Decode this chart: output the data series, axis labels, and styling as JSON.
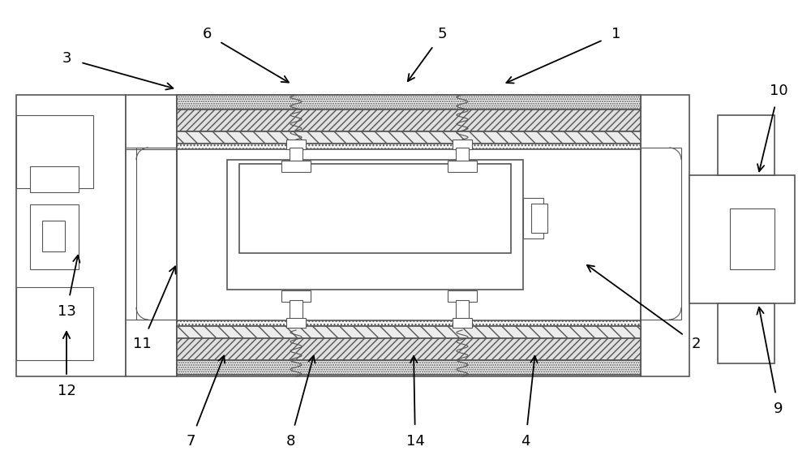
{
  "figsize": [
    10.0,
    5.72
  ],
  "dpi": 100,
  "bg_color": "#ffffff",
  "lc": "#555555",
  "lw_main": 1.2,
  "lw_thin": 0.8,
  "labels_data": [
    [
      "1",
      760,
      530,
      620,
      468
    ],
    [
      "2",
      858,
      148,
      720,
      248
    ],
    [
      "3",
      82,
      500,
      218,
      462
    ],
    [
      "4",
      648,
      28,
      660,
      138
    ],
    [
      "5",
      545,
      530,
      500,
      468
    ],
    [
      "6",
      255,
      530,
      360,
      468
    ],
    [
      "7",
      235,
      28,
      278,
      138
    ],
    [
      "8",
      358,
      28,
      388,
      138
    ],
    [
      "9",
      960,
      68,
      935,
      198
    ],
    [
      "10",
      960,
      460,
      935,
      356
    ],
    [
      "11",
      175,
      148,
      218,
      248
    ],
    [
      "12",
      82,
      90,
      82,
      168
    ],
    [
      "13",
      82,
      188,
      97,
      262
    ],
    [
      "14",
      512,
      28,
      510,
      138
    ]
  ]
}
